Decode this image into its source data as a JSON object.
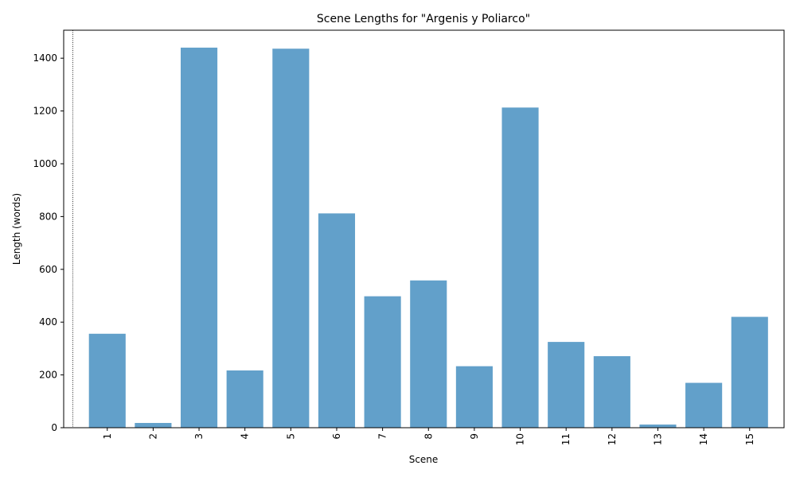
{
  "chart_data": {
    "type": "bar",
    "title": "Scene Lengths for \"Argenis y Poliarco\"",
    "xlabel": "Scene",
    "ylabel": "Length (words)",
    "categories": [
      "1",
      "2",
      "3",
      "4",
      "5",
      "6",
      "7",
      "8",
      "9",
      "10",
      "11",
      "12",
      "13",
      "14",
      "15"
    ],
    "values": [
      356,
      18,
      1440,
      217,
      1436,
      812,
      498,
      558,
      233,
      1213,
      325,
      271,
      12,
      170,
      420
    ],
    "yticks": [
      0,
      200,
      400,
      600,
      800,
      1000,
      1200,
      1400
    ],
    "ylim": [
      0,
      1506
    ],
    "xlim": [
      0.05,
      15.75
    ],
    "bar_color": "#62a0ca",
    "grid": false,
    "reference_line": {
      "x": 0.25,
      "style": "dotted",
      "color": "#000000"
    }
  }
}
